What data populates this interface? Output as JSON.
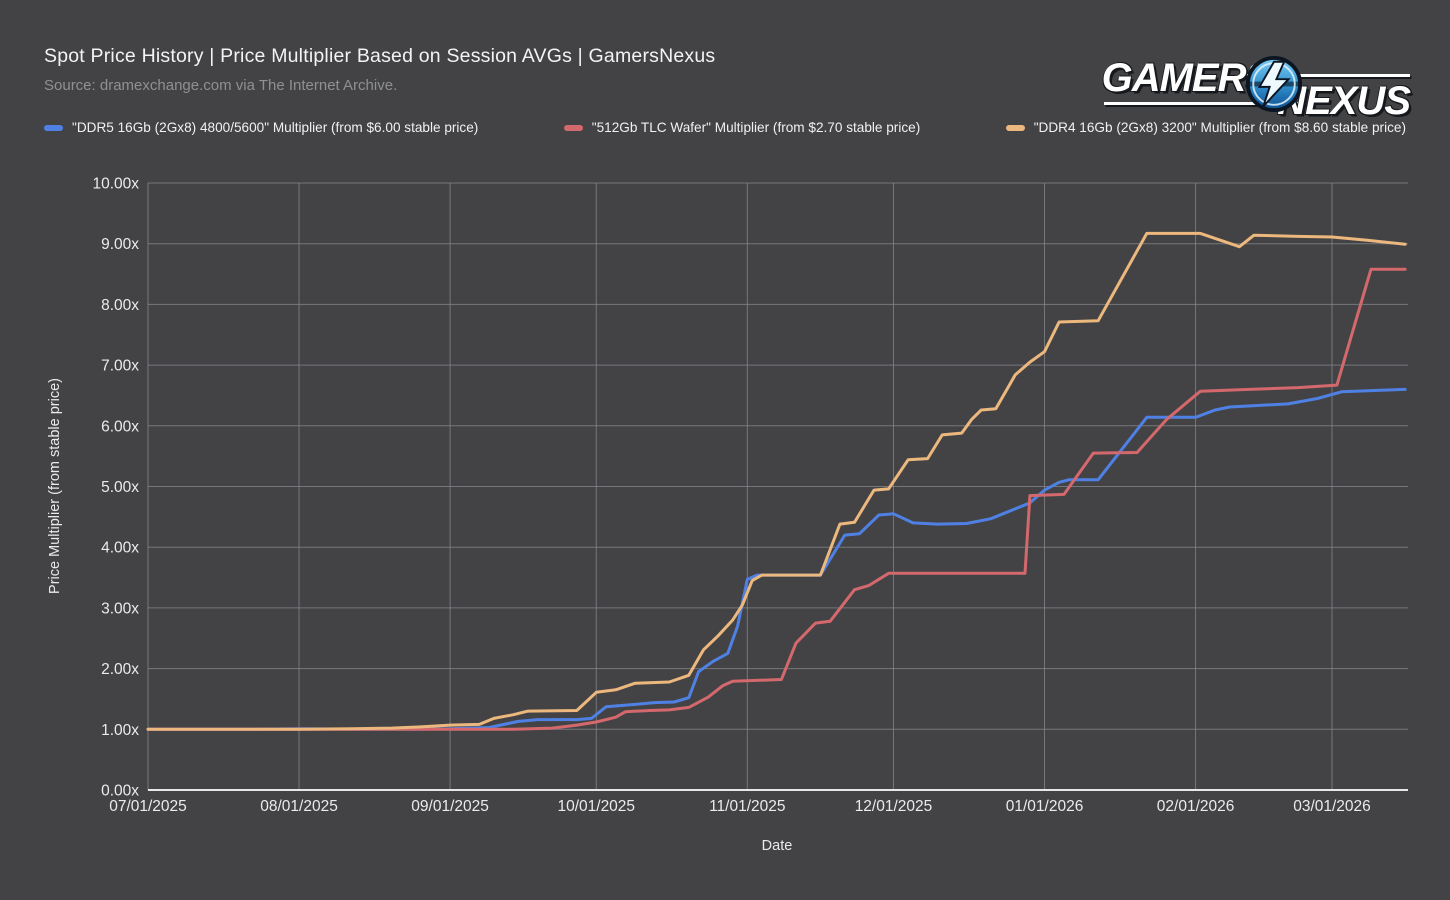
{
  "logo": {
    "left": "GAMERS",
    "right": "NEXUS"
  },
  "chart_data": {
    "type": "line",
    "title": "Spot Price History | Price Multiplier Based on Session AVGs | GamersNexus",
    "subtitle": "Source: dramexchange.com via The Internet Archive.",
    "xlabel": "Date",
    "ylabel": "Price Multiplier (from stable price)",
    "grid": true,
    "legend_position": "top",
    "ylim": [
      0,
      10
    ],
    "x_range_days": [
      0,
      258
    ],
    "x_ticks": [
      {
        "day": 0,
        "label": "07/01/2025"
      },
      {
        "day": 31,
        "label": "08/01/2025"
      },
      {
        "day": 62,
        "label": "09/01/2025"
      },
      {
        "day": 92,
        "label": "10/01/2025"
      },
      {
        "day": 123,
        "label": "11/01/2025"
      },
      {
        "day": 153,
        "label": "12/01/2025"
      },
      {
        "day": 184,
        "label": "01/01/2026"
      },
      {
        "day": 215,
        "label": "02/01/2026"
      },
      {
        "day": 243,
        "label": "03/01/2026"
      }
    ],
    "y_ticks": [
      {
        "value": 0,
        "label": "0.00x"
      },
      {
        "value": 1,
        "label": "1.00x"
      },
      {
        "value": 2,
        "label": "2.00x"
      },
      {
        "value": 3,
        "label": "3.00x"
      },
      {
        "value": 4,
        "label": "4.00x"
      },
      {
        "value": 5,
        "label": "5.00x"
      },
      {
        "value": 6,
        "label": "6.00x"
      },
      {
        "value": 7,
        "label": "7.00x"
      },
      {
        "value": 8,
        "label": "8.00x"
      },
      {
        "value": 9,
        "label": "9.00x"
      },
      {
        "value": 10,
        "label": "10.00x"
      }
    ],
    "series": [
      {
        "name": "\"DDR5 16Gb (2Gx8) 4800/5600\" Multiplier (from $6.00 stable price)",
        "color": "#4f81e4",
        "points": [
          [
            0,
            1.0
          ],
          [
            10,
            1.0
          ],
          [
            20,
            1.0
          ],
          [
            31,
            1.01
          ],
          [
            45,
            1.0
          ],
          [
            55,
            1.0
          ],
          [
            62,
            1.01
          ],
          [
            70,
            1.03
          ],
          [
            76,
            1.13
          ],
          [
            80,
            1.16
          ],
          [
            88,
            1.16
          ],
          [
            91,
            1.18
          ],
          [
            94,
            1.37
          ],
          [
            100,
            1.41
          ],
          [
            104,
            1.44
          ],
          [
            108,
            1.45
          ],
          [
            111,
            1.52
          ],
          [
            113,
            1.95
          ],
          [
            116,
            2.12
          ],
          [
            119,
            2.25
          ],
          [
            121,
            2.7
          ],
          [
            123,
            3.47
          ],
          [
            125,
            3.54
          ],
          [
            138,
            3.54
          ],
          [
            143,
            4.2
          ],
          [
            146,
            4.22
          ],
          [
            150,
            4.53
          ],
          [
            153,
            4.55
          ],
          [
            157,
            4.4
          ],
          [
            162,
            4.38
          ],
          [
            168,
            4.39
          ],
          [
            173,
            4.47
          ],
          [
            177,
            4.6
          ],
          [
            181,
            4.73
          ],
          [
            184,
            4.94
          ],
          [
            187,
            5.07
          ],
          [
            189,
            5.11
          ],
          [
            195,
            5.11
          ],
          [
            205,
            6.14
          ],
          [
            215,
            6.14
          ],
          [
            219,
            6.26
          ],
          [
            222,
            6.31
          ],
          [
            234,
            6.36
          ],
          [
            240,
            6.45
          ],
          [
            245,
            6.56
          ],
          [
            251,
            6.58
          ],
          [
            258,
            6.6
          ]
        ]
      },
      {
        "name": "\"512Gb TLC Wafer\" Multiplier (from $2.70 stable price)",
        "color": "#d4696d",
        "points": [
          [
            0,
            1.0
          ],
          [
            15,
            1.0
          ],
          [
            31,
            1.0
          ],
          [
            45,
            1.0
          ],
          [
            62,
            1.0
          ],
          [
            75,
            1.0
          ],
          [
            83,
            1.02
          ],
          [
            88,
            1.07
          ],
          [
            92,
            1.12
          ],
          [
            96,
            1.2
          ],
          [
            98,
            1.29
          ],
          [
            103,
            1.31
          ],
          [
            107,
            1.32
          ],
          [
            111,
            1.36
          ],
          [
            115,
            1.53
          ],
          [
            118,
            1.72
          ],
          [
            120,
            1.79
          ],
          [
            130,
            1.82
          ],
          [
            133,
            2.42
          ],
          [
            137,
            2.75
          ],
          [
            140,
            2.78
          ],
          [
            145,
            3.3
          ],
          [
            148,
            3.37
          ],
          [
            152,
            3.57
          ],
          [
            166,
            3.57
          ],
          [
            180,
            3.57
          ],
          [
            181,
            4.85
          ],
          [
            188,
            4.87
          ],
          [
            194,
            5.55
          ],
          [
            203,
            5.56
          ],
          [
            209,
            6.1
          ],
          [
            216,
            6.57
          ],
          [
            226,
            6.6
          ],
          [
            236,
            6.63
          ],
          [
            244,
            6.67
          ],
          [
            251,
            8.58
          ],
          [
            258,
            8.58
          ]
        ]
      },
      {
        "name": "\"DDR4 16Gb (2Gx8) 3200\" Multiplier (from $8.60 stable price)",
        "color": "#edb87d",
        "points": [
          [
            0,
            1.0
          ],
          [
            10,
            1.0
          ],
          [
            20,
            1.0
          ],
          [
            31,
            1.0
          ],
          [
            42,
            1.01
          ],
          [
            50,
            1.02
          ],
          [
            56,
            1.04
          ],
          [
            62,
            1.07
          ],
          [
            68,
            1.08
          ],
          [
            71,
            1.18
          ],
          [
            75,
            1.24
          ],
          [
            78,
            1.3
          ],
          [
            88,
            1.31
          ],
          [
            92,
            1.61
          ],
          [
            96,
            1.65
          ],
          [
            100,
            1.76
          ],
          [
            107,
            1.78
          ],
          [
            111,
            1.89
          ],
          [
            114,
            2.31
          ],
          [
            117,
            2.54
          ],
          [
            120,
            2.8
          ],
          [
            122,
            3.05
          ],
          [
            124,
            3.45
          ],
          [
            126,
            3.54
          ],
          [
            138,
            3.54
          ],
          [
            142,
            4.38
          ],
          [
            145,
            4.41
          ],
          [
            149,
            4.94
          ],
          [
            152,
            4.96
          ],
          [
            156,
            5.44
          ],
          [
            160,
            5.46
          ],
          [
            163,
            5.85
          ],
          [
            167,
            5.88
          ],
          [
            169,
            6.1
          ],
          [
            171,
            6.26
          ],
          [
            174,
            6.28
          ],
          [
            178,
            6.84
          ],
          [
            181,
            7.05
          ],
          [
            184,
            7.22
          ],
          [
            187,
            7.71
          ],
          [
            195,
            7.73
          ],
          [
            205,
            9.17
          ],
          [
            216,
            9.17
          ],
          [
            224,
            8.95
          ],
          [
            227,
            9.14
          ],
          [
            236,
            9.12
          ],
          [
            243,
            9.11
          ],
          [
            250,
            9.06
          ],
          [
            258,
            8.99
          ]
        ]
      }
    ],
    "colors": {
      "background": "#434345",
      "gridline": "#87898f",
      "axis_line": "#e8e8e8",
      "tick_label": "#eaebec"
    }
  }
}
